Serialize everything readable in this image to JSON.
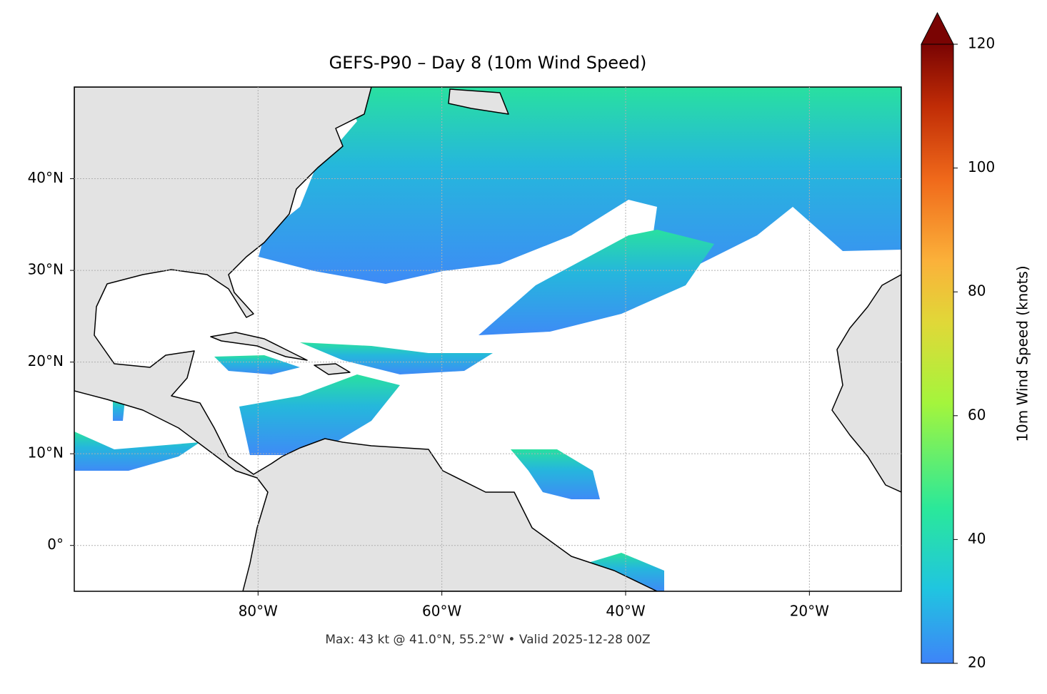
{
  "chart_data": {
    "type": "map",
    "title": "GEFS-P90 – Day 8 (10m Wind Speed)",
    "footnote": "Max: 43 kt @ 41.0°N, 55.2°W • Valid 2025-12-28 00Z",
    "xlim": [
      -100,
      -10
    ],
    "ylim": [
      -5,
      50
    ],
    "xticks": [
      {
        "value": -80,
        "label": "80°W"
      },
      {
        "value": -60,
        "label": "60°W"
      },
      {
        "value": -40,
        "label": "40°W"
      },
      {
        "value": -20,
        "label": "20°W"
      }
    ],
    "yticks": [
      {
        "value": 0,
        "label": "0°"
      },
      {
        "value": 10,
        "label": "10°N"
      },
      {
        "value": 20,
        "label": "20°N"
      },
      {
        "value": 30,
        "label": "30°N"
      },
      {
        "value": 40,
        "label": "40°N"
      }
    ],
    "grid": true,
    "colorbar": {
      "label": "10m Wind Speed (knots)",
      "lim": [
        20,
        120
      ],
      "ticks": [
        20,
        40,
        60,
        80,
        100,
        120
      ]
    }
  }
}
